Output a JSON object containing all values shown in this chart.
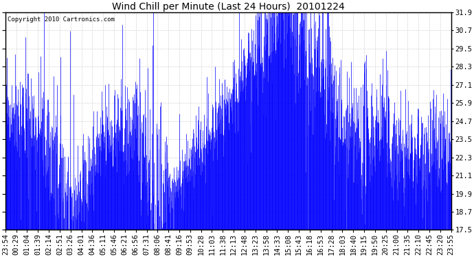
{
  "title": "Wind Chill per Minute (Last 24 Hours)  20101224",
  "copyright_text": "Copyright 2010 Cartronics.com",
  "ylabel_right": [
    "31.9",
    "30.7",
    "29.5",
    "28.3",
    "27.1",
    "25.9",
    "24.7",
    "23.5",
    "22.3",
    "21.1",
    "19.9",
    "18.7",
    "17.5"
  ],
  "ytick_values": [
    31.9,
    30.7,
    29.5,
    28.3,
    27.1,
    25.9,
    24.7,
    23.5,
    22.3,
    21.1,
    19.9,
    18.7,
    17.5
  ],
  "ylim": [
    17.5,
    31.9
  ],
  "xtick_labels": [
    "23:54",
    "00:29",
    "01:04",
    "01:39",
    "02:14",
    "02:51",
    "03:26",
    "04:01",
    "04:36",
    "05:11",
    "05:46",
    "06:21",
    "06:56",
    "07:31",
    "08:06",
    "08:41",
    "09:16",
    "09:53",
    "10:28",
    "11:03",
    "11:38",
    "12:13",
    "12:48",
    "13:23",
    "13:58",
    "14:33",
    "15:08",
    "15:43",
    "16:18",
    "16:53",
    "17:28",
    "18:03",
    "18:40",
    "19:15",
    "19:50",
    "20:25",
    "21:00",
    "21:35",
    "22:10",
    "22:45",
    "23:20",
    "23:55"
  ],
  "line_color": "#0000ff",
  "background_color": "#ffffff",
  "plot_bg_color": "#ffffff",
  "grid_color": "#c8c8c8",
  "title_fontsize": 10,
  "copyright_fontsize": 6.5,
  "tick_fontsize": 7.5
}
